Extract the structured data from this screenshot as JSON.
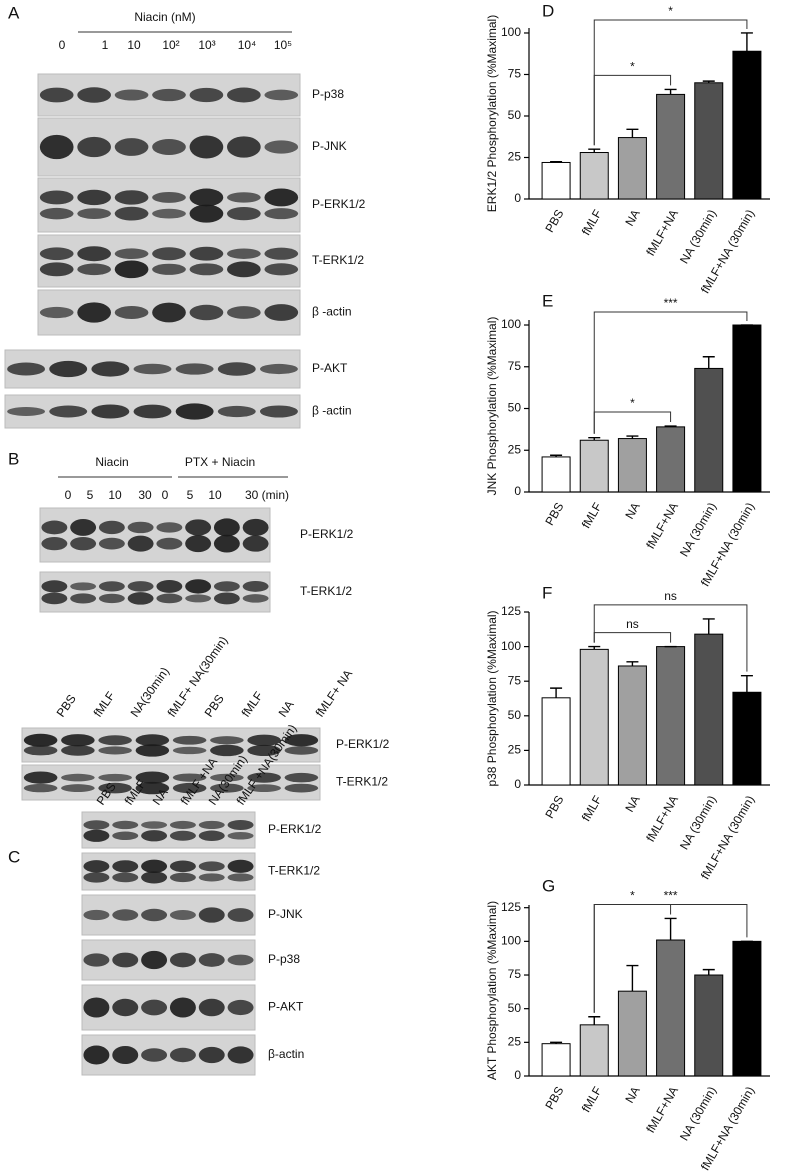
{
  "blots": {
    "A": {
      "panel": "A",
      "title": "Niacin (nM)",
      "lanes": [
        "0",
        "1",
        "10",
        "10²",
        "10³",
        "10⁴",
        "10⁵"
      ],
      "rows": [
        "P-p38",
        "P-JNK",
        "P-ERK1/2",
        "T-ERK1/2",
        "β -actin",
        "P-AKT",
        "β -actin"
      ]
    },
    "B": {
      "panel": "B",
      "groups": [
        "Niacin",
        "PTX + Niacin"
      ],
      "lanes": [
        "0",
        "5",
        "10",
        "30",
        "0",
        "5",
        "10",
        "30 (min)"
      ],
      "rows": [
        "P-ERK1/2",
        "T-ERK1/2"
      ]
    },
    "B2": {
      "lanes": [
        "PBS",
        "fMLF",
        "NA(30min)",
        "fMLF+ NA(30min)",
        "PBS",
        "fMLF",
        "NA",
        "fMLF+ NA"
      ],
      "rows": [
        "P-ERK1/2",
        "T-ERK1/2"
      ]
    },
    "C": {
      "panel": "C",
      "lanes": [
        "PBS",
        "fMLF",
        "NA",
        "fMLF +NA",
        "NA(30min)",
        "fMLF +NA(30min)"
      ],
      "rows": [
        "P-ERK1/2",
        "T-ERK1/2",
        "P-JNK",
        "P-p38",
        "P-AKT",
        "β-actin"
      ]
    }
  },
  "chart_data": [
    {
      "type": "bar",
      "panel": "D",
      "ylabel": "ERK1/2 Phosphorylation (%Maximal)",
      "categories": [
        "PBS",
        "fMLF",
        "NA",
        "fMLF+NA",
        "NA (30min)",
        "fMLF+NA (30min)"
      ],
      "values": [
        22,
        28,
        37,
        63,
        70,
        89
      ],
      "errors": [
        0.5,
        2,
        5,
        3,
        1,
        11
      ],
      "colors": [
        "#ffffff",
        "#c8c8c8",
        "#a0a0a0",
        "#707070",
        "#505050",
        "#000000"
      ],
      "ylim": [
        0,
        103
      ],
      "yticks": [
        0,
        25,
        50,
        75,
        100
      ],
      "annotations": [
        {
          "text": "*",
          "between": [
            "fMLF",
            "fMLF+NA"
          ]
        },
        {
          "text": "*",
          "between": [
            "fMLF",
            "fMLF+NA (30min)"
          ]
        }
      ]
    },
    {
      "type": "bar",
      "panel": "E",
      "ylabel": "JNK Phosphorylation (%Maximal)",
      "categories": [
        "PBS",
        "fMLF",
        "NA",
        "fMLF+NA",
        "NA (30min)",
        "fMLF+NA (30min)"
      ],
      "values": [
        21,
        31,
        32,
        39,
        74,
        100
      ],
      "errors": [
        1,
        1.5,
        1.5,
        0.5,
        7,
        0
      ],
      "colors": [
        "#ffffff",
        "#c8c8c8",
        "#a0a0a0",
        "#707070",
        "#505050",
        "#000000"
      ],
      "ylim": [
        0,
        103
      ],
      "yticks": [
        0,
        25,
        50,
        75,
        100
      ],
      "annotations": [
        {
          "text": "*",
          "between": [
            "fMLF",
            "fMLF+NA"
          ]
        },
        {
          "text": "***",
          "between": [
            "fMLF",
            "fMLF+NA (30min)"
          ]
        }
      ]
    },
    {
      "type": "bar",
      "panel": "F",
      "ylabel": "p38 Phosphorylation (%Maximal)",
      "categories": [
        "PBS",
        "fMLF",
        "NA",
        "fMLF+NA",
        "NA (30min)",
        "fMLF+NA (30min)"
      ],
      "values": [
        63,
        98,
        86,
        100,
        109,
        67
      ],
      "errors": [
        7,
        2,
        3,
        0,
        11,
        12
      ],
      "colors": [
        "#ffffff",
        "#c8c8c8",
        "#a0a0a0",
        "#707070",
        "#505050",
        "#000000"
      ],
      "ylim": [
        0,
        125
      ],
      "yticks": [
        0,
        25,
        50,
        75,
        100,
        125
      ],
      "annotations": [
        {
          "text": "ns",
          "between": [
            "fMLF",
            "fMLF+NA"
          ]
        },
        {
          "text": "ns",
          "between": [
            "fMLF",
            "fMLF+NA (30min)"
          ]
        }
      ]
    },
    {
      "type": "bar",
      "panel": "G",
      "ylabel": "AKT Phosphorylation (%Maximal)",
      "categories": [
        "PBS",
        "fMLF",
        "NA",
        "fMLF+NA",
        "NA (30min)",
        "fMLF+NA (30min)"
      ],
      "values": [
        24,
        38,
        63,
        101,
        75,
        100
      ],
      "errors": [
        1,
        6,
        19,
        16,
        4,
        0
      ],
      "colors": [
        "#ffffff",
        "#c8c8c8",
        "#a0a0a0",
        "#707070",
        "#505050",
        "#000000"
      ],
      "ylim": [
        0,
        127
      ],
      "yticks": [
        0,
        25,
        50,
        75,
        100,
        125
      ],
      "annotations": [
        {
          "text": "*",
          "between": [
            "fMLF",
            "fMLF+NA"
          ]
        },
        {
          "text": "***",
          "between": [
            "fMLF",
            "fMLF+NA (30min)"
          ]
        }
      ]
    }
  ]
}
